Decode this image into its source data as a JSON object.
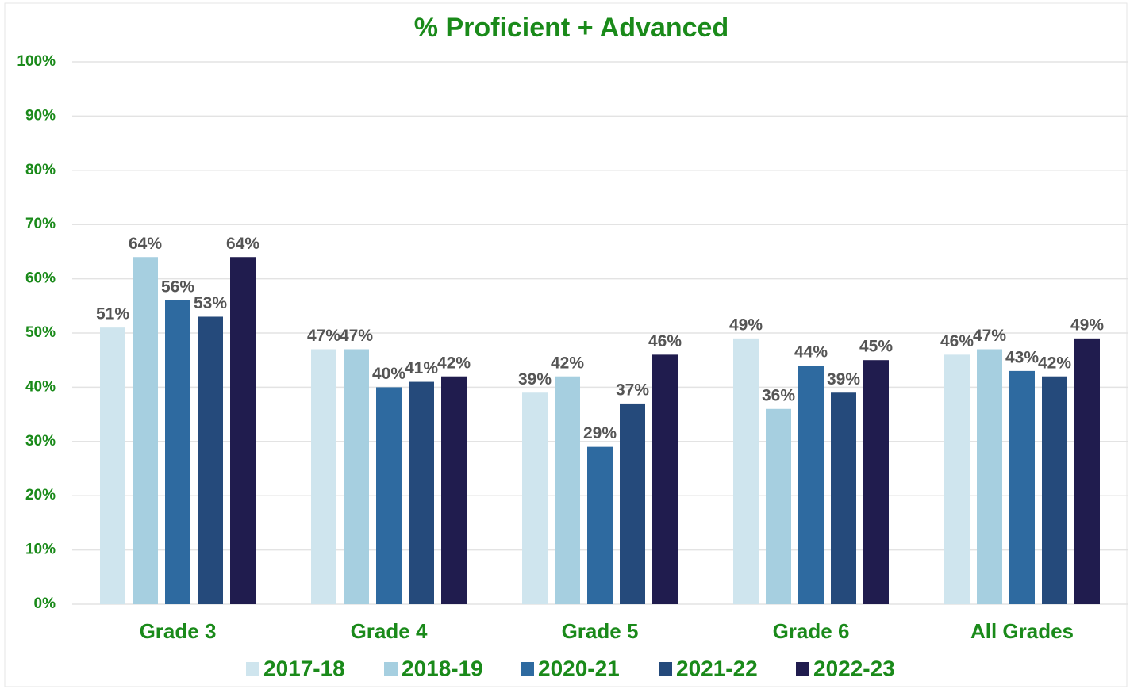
{
  "chart_data": {
    "type": "bar",
    "title": "% Proficient + Advanced",
    "categories": [
      "Grade 3",
      "Grade 4",
      "Grade 5",
      "Grade 6",
      "All Grades"
    ],
    "series": [
      {
        "name": "2017-18",
        "color": "#cfe5ee",
        "values": [
          51,
          47,
          39,
          49,
          46
        ],
        "value_labels": [
          "51%",
          "47%",
          "39%",
          "49%",
          "46%"
        ]
      },
      {
        "name": "2018-19",
        "color": "#a6cfe0",
        "values": [
          64,
          47,
          42,
          36,
          47
        ],
        "value_labels": [
          "64%",
          "47%",
          "42%",
          "36%",
          "47%"
        ]
      },
      {
        "name": "2020-21",
        "color": "#2e6aa0",
        "values": [
          56,
          40,
          29,
          44,
          43
        ],
        "value_labels": [
          "56%",
          "40%",
          "29%",
          "44%",
          "43%"
        ]
      },
      {
        "name": "2021-22",
        "color": "#254a7b",
        "values": [
          53,
          41,
          37,
          39,
          42
        ],
        "value_labels": [
          "53%",
          "41%",
          "37%",
          "39%",
          "42%"
        ]
      },
      {
        "name": "2022-23",
        "color": "#201c4e",
        "values": [
          64,
          42,
          46,
          45,
          49
        ],
        "value_labels": [
          "64%",
          "42%",
          "46%",
          "45%",
          "49%"
        ]
      }
    ],
    "ylim": [
      0,
      100
    ],
    "yticks": [
      {
        "value": 0,
        "label": "0%"
      },
      {
        "value": 10,
        "label": "10%"
      },
      {
        "value": 20,
        "label": "20%"
      },
      {
        "value": 30,
        "label": "30%"
      },
      {
        "value": 40,
        "label": "40%"
      },
      {
        "value": 50,
        "label": "50%"
      },
      {
        "value": 60,
        "label": "60%"
      },
      {
        "value": 70,
        "label": "70%"
      },
      {
        "value": 80,
        "label": "80%"
      },
      {
        "value": 90,
        "label": "90%"
      },
      {
        "value": 100,
        "label": "100%"
      }
    ],
    "grid": true,
    "legend": "bottom"
  }
}
